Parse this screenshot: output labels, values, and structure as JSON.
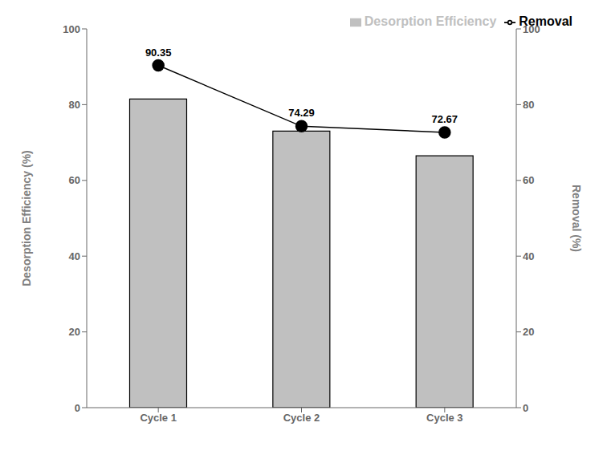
{
  "chart_data": {
    "type": "bar",
    "categories": [
      "Cycle 1",
      "Cycle 2",
      "Cycle 3"
    ],
    "series": [
      {
        "name": "Desorption Efficiency",
        "type": "bar",
        "color": "#c0c0c0",
        "values": [
          81.5,
          73.0,
          66.5
        ]
      },
      {
        "name": "Removal",
        "type": "line",
        "color": "#000000",
        "marker": "circle",
        "axis": "y2",
        "data_labels": true,
        "values": [
          90.35,
          74.29,
          72.67
        ]
      }
    ],
    "ylabel": "Desorption Efficiency (%)",
    "y2label": "Removal (%)",
    "ylim": [
      0,
      100
    ],
    "yticks": [
      0,
      20,
      40,
      60,
      80,
      100
    ],
    "y2lim": [
      0,
      100
    ],
    "y2ticks": [
      0,
      20,
      40,
      60,
      80,
      100
    ],
    "legend": "upper right",
    "grid": false
  }
}
